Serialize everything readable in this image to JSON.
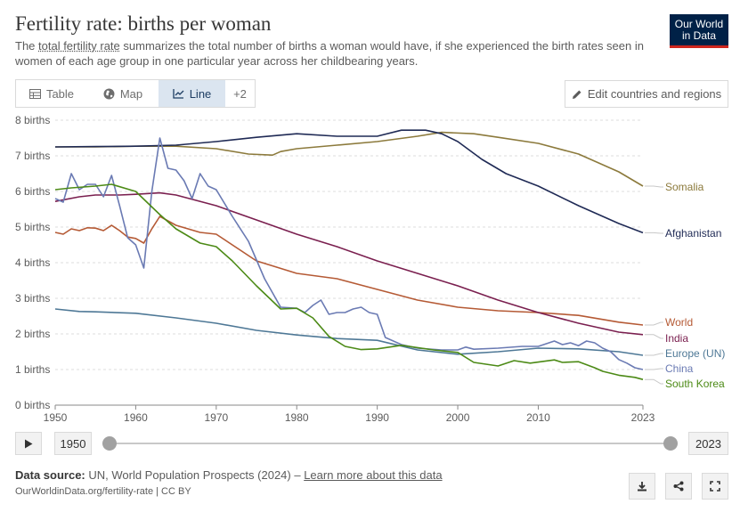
{
  "header": {
    "title": "Fertility rate: births per woman",
    "subtitle_pre": "The ",
    "subtitle_link": "total fertility rate",
    "subtitle_post": " summarizes the total number of births a woman would have, if she experienced the birth rates seen in women of each age group in one particular year across her childbearing years.",
    "logo_line1": "Our World",
    "logo_line2": "in Data"
  },
  "tabs": [
    {
      "label": "Table",
      "icon": "table-icon",
      "active": false
    },
    {
      "label": "Map",
      "icon": "globe-icon",
      "active": false
    },
    {
      "label": "Line",
      "icon": "line-chart-icon",
      "active": true
    },
    {
      "label": "+2",
      "active": false
    }
  ],
  "edit_button": {
    "label": "Edit countries and regions",
    "icon": "pencil-icon"
  },
  "timeline": {
    "start_year": "1950",
    "end_year": "2023",
    "play_icon": "play-icon"
  },
  "footer": {
    "source_label": "Data source:",
    "source_text": " UN, World Population Prospects (2024) – ",
    "learn_more": "Learn more about this data",
    "url": "OurWorldinData.org/fertility-rate | CC BY",
    "icons": [
      "download-icon",
      "share-icon",
      "fullscreen-icon"
    ]
  },
  "chart_data": {
    "type": "line",
    "title": "Fertility rate: births per woman",
    "y_unit": "births",
    "ylim": [
      0,
      8
    ],
    "xlim": [
      1950,
      2023
    ],
    "y_ticks": [
      {
        "value": 0,
        "label": "0 births"
      },
      {
        "value": 1,
        "label": "1 births"
      },
      {
        "value": 2,
        "label": "2 births"
      },
      {
        "value": 3,
        "label": "3 births"
      },
      {
        "value": 4,
        "label": "4 births"
      },
      {
        "value": 5,
        "label": "5 births"
      },
      {
        "value": 6,
        "label": "6 births"
      },
      {
        "value": 7,
        "label": "7 births"
      },
      {
        "value": 8,
        "label": "8 births"
      }
    ],
    "x_ticks": [
      "1950",
      "1960",
      "1970",
      "1980",
      "1990",
      "2000",
      "2010",
      "2023"
    ],
    "grid": "horizontal dashed",
    "legend": "right, labels at line ends",
    "series": [
      {
        "name": "Somalia",
        "color": "#8c7a3c",
        "points": [
          [
            1950,
            7.25
          ],
          [
            1955,
            7.25
          ],
          [
            1960,
            7.27
          ],
          [
            1965,
            7.27
          ],
          [
            1970,
            7.2
          ],
          [
            1974,
            7.05
          ],
          [
            1977,
            7.02
          ],
          [
            1978,
            7.12
          ],
          [
            1980,
            7.2
          ],
          [
            1985,
            7.3
          ],
          [
            1990,
            7.4
          ],
          [
            1995,
            7.55
          ],
          [
            1998,
            7.66
          ],
          [
            2002,
            7.62
          ],
          [
            2005,
            7.52
          ],
          [
            2010,
            7.35
          ],
          [
            2015,
            7.05
          ],
          [
            2020,
            6.55
          ],
          [
            2023,
            6.15
          ]
        ]
      },
      {
        "name": "Afghanistan",
        "color": "#1f2a55",
        "points": [
          [
            1950,
            7.25
          ],
          [
            1955,
            7.26
          ],
          [
            1960,
            7.27
          ],
          [
            1965,
            7.3
          ],
          [
            1970,
            7.4
          ],
          [
            1975,
            7.52
          ],
          [
            1980,
            7.62
          ],
          [
            1985,
            7.55
          ],
          [
            1990,
            7.55
          ],
          [
            1993,
            7.72
          ],
          [
            1996,
            7.72
          ],
          [
            1998,
            7.62
          ],
          [
            2000,
            7.4
          ],
          [
            2003,
            6.9
          ],
          [
            2006,
            6.5
          ],
          [
            2010,
            6.15
          ],
          [
            2015,
            5.6
          ],
          [
            2020,
            5.1
          ],
          [
            2023,
            4.84
          ]
        ]
      },
      {
        "name": "World",
        "color": "#b55a35",
        "points": [
          [
            1950,
            4.85
          ],
          [
            1951,
            4.8
          ],
          [
            1952,
            4.95
          ],
          [
            1953,
            4.9
          ],
          [
            1954,
            4.98
          ],
          [
            1955,
            4.97
          ],
          [
            1956,
            4.9
          ],
          [
            1957,
            5.05
          ],
          [
            1958,
            4.9
          ],
          [
            1959,
            4.72
          ],
          [
            1960,
            4.68
          ],
          [
            1961,
            4.55
          ],
          [
            1962,
            4.95
          ],
          [
            1963,
            5.3
          ],
          [
            1965,
            5.05
          ],
          [
            1968,
            4.85
          ],
          [
            1970,
            4.8
          ],
          [
            1975,
            4.05
          ],
          [
            1980,
            3.7
          ],
          [
            1985,
            3.55
          ],
          [
            1990,
            3.25
          ],
          [
            1995,
            2.95
          ],
          [
            2000,
            2.75
          ],
          [
            2005,
            2.65
          ],
          [
            2010,
            2.6
          ],
          [
            2015,
            2.52
          ],
          [
            2020,
            2.33
          ],
          [
            2023,
            2.25
          ]
        ]
      },
      {
        "name": "India",
        "color": "#7a1f4f",
        "points": [
          [
            1950,
            5.72
          ],
          [
            1953,
            5.85
          ],
          [
            1955,
            5.9
          ],
          [
            1958,
            5.9
          ],
          [
            1960,
            5.92
          ],
          [
            1963,
            5.96
          ],
          [
            1965,
            5.9
          ],
          [
            1970,
            5.6
          ],
          [
            1975,
            5.2
          ],
          [
            1980,
            4.8
          ],
          [
            1985,
            4.45
          ],
          [
            1990,
            4.05
          ],
          [
            1995,
            3.7
          ],
          [
            2000,
            3.35
          ],
          [
            2005,
            2.95
          ],
          [
            2010,
            2.6
          ],
          [
            2015,
            2.3
          ],
          [
            2020,
            2.05
          ],
          [
            2023,
            1.98
          ]
        ]
      },
      {
        "name": "Europe (UN)",
        "color": "#4e7896",
        "points": [
          [
            1950,
            2.7
          ],
          [
            1953,
            2.63
          ],
          [
            1955,
            2.62
          ],
          [
            1960,
            2.58
          ],
          [
            1965,
            2.45
          ],
          [
            1970,
            2.3
          ],
          [
            1975,
            2.1
          ],
          [
            1980,
            1.97
          ],
          [
            1985,
            1.87
          ],
          [
            1990,
            1.82
          ],
          [
            1995,
            1.55
          ],
          [
            2000,
            1.43
          ],
          [
            2005,
            1.5
          ],
          [
            2010,
            1.6
          ],
          [
            2015,
            1.58
          ],
          [
            2020,
            1.5
          ],
          [
            2023,
            1.4
          ]
        ]
      },
      {
        "name": "China",
        "color": "#6a7ab3",
        "points": [
          [
            1950,
            5.8
          ],
          [
            1951,
            5.7
          ],
          [
            1952,
            6.5
          ],
          [
            1953,
            6.05
          ],
          [
            1954,
            6.2
          ],
          [
            1955,
            6.2
          ],
          [
            1956,
            5.85
          ],
          [
            1957,
            6.45
          ],
          [
            1958,
            5.6
          ],
          [
            1959,
            4.7
          ],
          [
            1960,
            4.5
          ],
          [
            1961,
            3.85
          ],
          [
            1962,
            6.0
          ],
          [
            1963,
            7.5
          ],
          [
            1964,
            6.65
          ],
          [
            1965,
            6.6
          ],
          [
            1966,
            6.3
          ],
          [
            1967,
            5.8
          ],
          [
            1968,
            6.5
          ],
          [
            1969,
            6.15
          ],
          [
            1970,
            6.05
          ],
          [
            1972,
            5.3
          ],
          [
            1974,
            4.6
          ],
          [
            1976,
            3.55
          ],
          [
            1978,
            2.75
          ],
          [
            1980,
            2.72
          ],
          [
            1981,
            2.6
          ],
          [
            1982,
            2.8
          ],
          [
            1983,
            2.95
          ],
          [
            1984,
            2.55
          ],
          [
            1985,
            2.6
          ],
          [
            1986,
            2.6
          ],
          [
            1987,
            2.7
          ],
          [
            1988,
            2.75
          ],
          [
            1989,
            2.6
          ],
          [
            1990,
            2.55
          ],
          [
            1991,
            1.9
          ],
          [
            1993,
            1.7
          ],
          [
            1995,
            1.6
          ],
          [
            1998,
            1.55
          ],
          [
            2000,
            1.55
          ],
          [
            2001,
            1.63
          ],
          [
            2002,
            1.57
          ],
          [
            2005,
            1.6
          ],
          [
            2008,
            1.65
          ],
          [
            2010,
            1.65
          ],
          [
            2012,
            1.8
          ],
          [
            2013,
            1.7
          ],
          [
            2014,
            1.75
          ],
          [
            2015,
            1.67
          ],
          [
            2016,
            1.8
          ],
          [
            2017,
            1.75
          ],
          [
            2018,
            1.6
          ],
          [
            2019,
            1.5
          ],
          [
            2020,
            1.28
          ],
          [
            2021,
            1.18
          ],
          [
            2022,
            1.05
          ],
          [
            2023,
            1.0
          ]
        ]
      },
      {
        "name": "South Korea",
        "color": "#4c8a16",
        "points": [
          [
            1950,
            6.05
          ],
          [
            1952,
            6.1
          ],
          [
            1955,
            6.15
          ],
          [
            1957,
            6.2
          ],
          [
            1960,
            6.0
          ],
          [
            1963,
            5.35
          ],
          [
            1965,
            4.95
          ],
          [
            1968,
            4.55
          ],
          [
            1970,
            4.45
          ],
          [
            1972,
            4.05
          ],
          [
            1975,
            3.35
          ],
          [
            1978,
            2.7
          ],
          [
            1980,
            2.72
          ],
          [
            1982,
            2.45
          ],
          [
            1984,
            1.93
          ],
          [
            1986,
            1.65
          ],
          [
            1988,
            1.56
          ],
          [
            1990,
            1.58
          ],
          [
            1993,
            1.68
          ],
          [
            1997,
            1.55
          ],
          [
            2000,
            1.48
          ],
          [
            2002,
            1.2
          ],
          [
            2005,
            1.1
          ],
          [
            2007,
            1.25
          ],
          [
            2009,
            1.18
          ],
          [
            2012,
            1.27
          ],
          [
            2013,
            1.2
          ],
          [
            2015,
            1.22
          ],
          [
            2017,
            1.05
          ],
          [
            2018,
            0.95
          ],
          [
            2020,
            0.84
          ],
          [
            2022,
            0.78
          ],
          [
            2023,
            0.72
          ]
        ]
      }
    ]
  }
}
